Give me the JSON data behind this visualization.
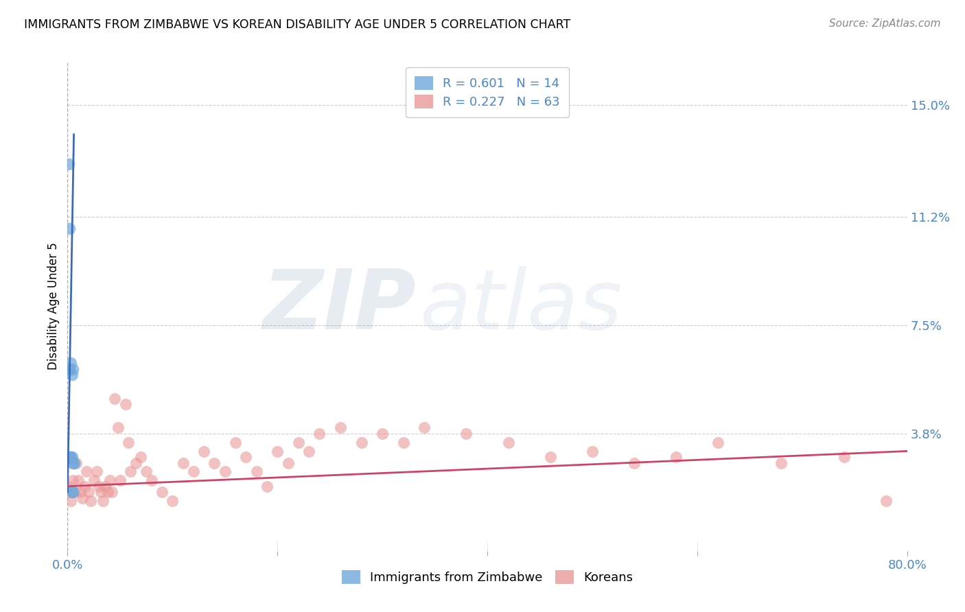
{
  "title": "IMMIGRANTS FROM ZIMBABWE VS KOREAN DISABILITY AGE UNDER 5 CORRELATION CHART",
  "source": "Source: ZipAtlas.com",
  "ylabel": "Disability Age Under 5",
  "xlim": [
    0.0,
    0.8
  ],
  "ylim": [
    -0.002,
    0.165
  ],
  "xtick_positions": [
    0.0,
    0.2,
    0.4,
    0.6,
    0.8
  ],
  "xticklabels": [
    "0.0%",
    "",
    "",
    "",
    "80.0%"
  ],
  "yticks": [
    0.038,
    0.075,
    0.112,
    0.15
  ],
  "yticklabels": [
    "3.8%",
    "7.5%",
    "11.2%",
    "15.0%"
  ],
  "blue_R": 0.601,
  "blue_N": 14,
  "pink_R": 0.227,
  "pink_N": 63,
  "blue_color": "#6fa8dc",
  "pink_color": "#ea9999",
  "blue_line_color": "#3d6bb3",
  "pink_line_color": "#cc4466",
  "tick_color": "#4a86c8",
  "grid_color": "#cccccc",
  "vline_color": "#aaaaaa",
  "blue_scatter_x": [
    0.001,
    0.001,
    0.002,
    0.002,
    0.002,
    0.003,
    0.003,
    0.004,
    0.004,
    0.004,
    0.005,
    0.005,
    0.005,
    0.006
  ],
  "blue_scatter_y": [
    0.13,
    0.06,
    0.108,
    0.06,
    0.03,
    0.062,
    0.03,
    0.058,
    0.03,
    0.018,
    0.06,
    0.028,
    0.018,
    0.028
  ],
  "pink_scatter_x": [
    0.001,
    0.002,
    0.003,
    0.005,
    0.007,
    0.008,
    0.01,
    0.012,
    0.014,
    0.016,
    0.018,
    0.02,
    0.022,
    0.025,
    0.028,
    0.03,
    0.032,
    0.034,
    0.036,
    0.038,
    0.04,
    0.042,
    0.045,
    0.048,
    0.05,
    0.055,
    0.058,
    0.06,
    0.065,
    0.07,
    0.075,
    0.08,
    0.09,
    0.1,
    0.11,
    0.12,
    0.13,
    0.14,
    0.15,
    0.16,
    0.17,
    0.18,
    0.19,
    0.2,
    0.21,
    0.22,
    0.23,
    0.24,
    0.26,
    0.28,
    0.3,
    0.32,
    0.34,
    0.38,
    0.42,
    0.46,
    0.5,
    0.54,
    0.58,
    0.62,
    0.68,
    0.74,
    0.78
  ],
  "pink_scatter_y": [
    0.02,
    0.018,
    0.015,
    0.022,
    0.018,
    0.028,
    0.022,
    0.018,
    0.016,
    0.02,
    0.025,
    0.018,
    0.015,
    0.022,
    0.025,
    0.02,
    0.018,
    0.015,
    0.02,
    0.018,
    0.022,
    0.018,
    0.05,
    0.04,
    0.022,
    0.048,
    0.035,
    0.025,
    0.028,
    0.03,
    0.025,
    0.022,
    0.018,
    0.015,
    0.028,
    0.025,
    0.032,
    0.028,
    0.025,
    0.035,
    0.03,
    0.025,
    0.02,
    0.032,
    0.028,
    0.035,
    0.032,
    0.038,
    0.04,
    0.035,
    0.038,
    0.035,
    0.04,
    0.038,
    0.035,
    0.03,
    0.032,
    0.028,
    0.03,
    0.035,
    0.028,
    0.03,
    0.015
  ],
  "pink_line_x0": 0.0,
  "pink_line_x1": 0.8,
  "pink_line_y0": 0.02,
  "pink_line_y1": 0.032,
  "blue_line_x0": 0.0,
  "blue_line_x1": 0.006,
  "blue_line_y0": 0.018,
  "blue_line_y1": 0.14
}
